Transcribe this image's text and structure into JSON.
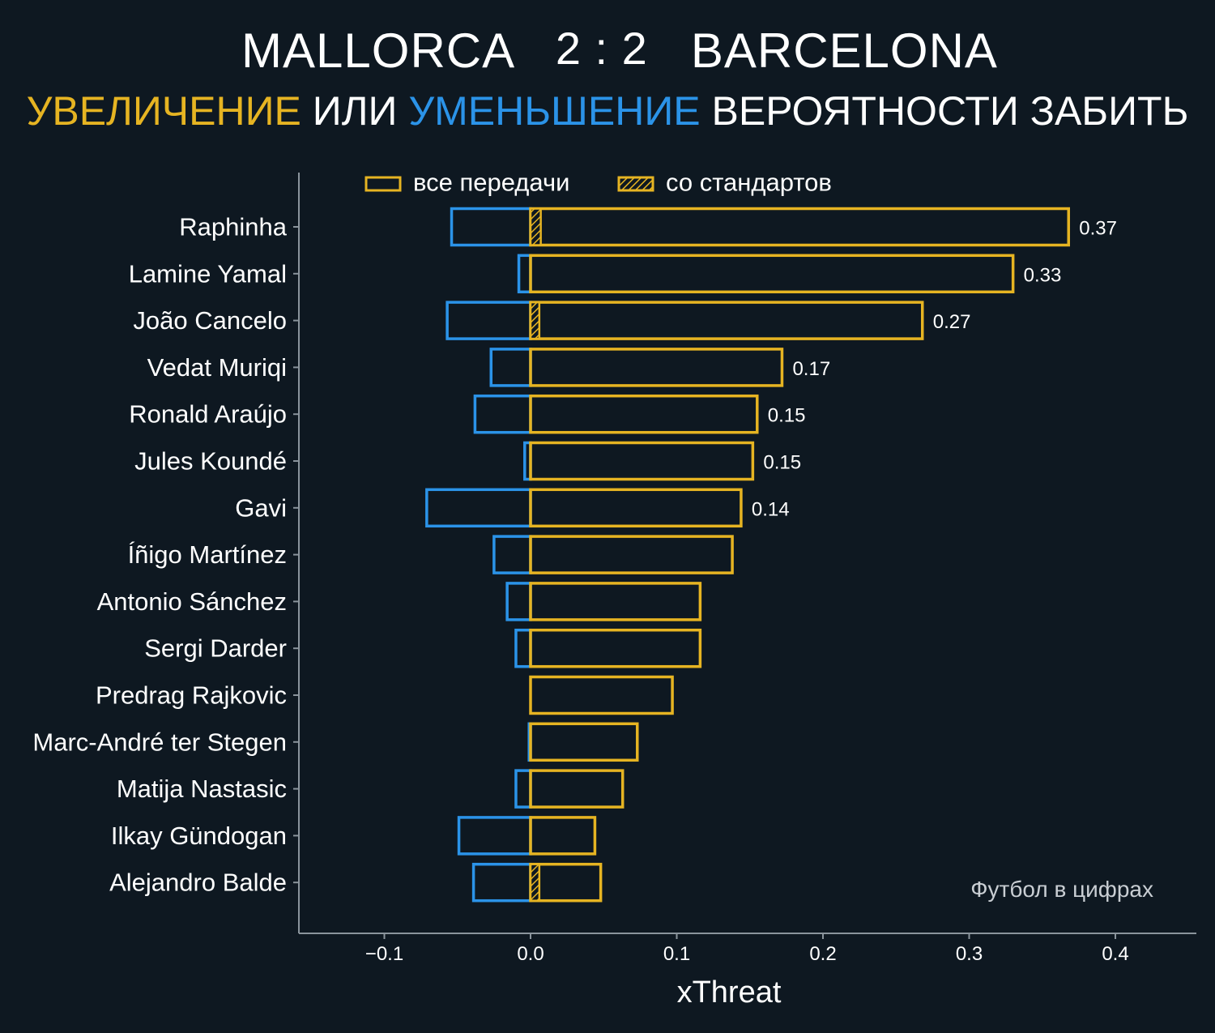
{
  "header": {
    "home_team": "MALLORCA",
    "score": "2 : 2",
    "away_team": "BARCELONA",
    "subtitle_increase": "УВЕЛИЧЕНИЕ",
    "subtitle_or": "ИЛИ",
    "subtitle_decrease": "УМЕНЬШЕНИЕ",
    "subtitle_rest": "ВЕРОЯТНОСТИ ЗАБИТЬ"
  },
  "credit": "Футбол в цифрах",
  "colors": {
    "background": "#0e1821",
    "increase": "#e6b422",
    "decrease": "#2b93e8",
    "axis": "#8a949c"
  },
  "chart_data": {
    "type": "bar",
    "orientation": "horizontal",
    "xlabel": "xThreat",
    "xlim": [
      -0.16,
      0.455
    ],
    "xticks": [
      -0.1,
      0.0,
      0.1,
      0.2,
      0.3,
      0.4
    ],
    "xtick_labels": [
      "−0.1",
      "0.0",
      "0.1",
      "0.2",
      "0.3",
      "0.4"
    ],
    "grid": false,
    "legend": {
      "placement": "top",
      "entries": [
        {
          "label": "все передачи",
          "style": "outline"
        },
        {
          "label": "со стандартов",
          "style": "hatched"
        }
      ]
    },
    "categories": [
      "Raphinha",
      "Lamine Yamal",
      "João Cancelo",
      "Vedat Muriqi",
      "Ronald Araújo",
      "Jules Koundé",
      "Gavi",
      "Íñigo Martínez",
      "Antonio Sánchez",
      "Sergi Darder",
      "Predrag Rajkovic",
      "Marc-André ter Stegen",
      "Matija Nastasic",
      "Ilkay Gündogan",
      "Alejandro Balde"
    ],
    "series": [
      {
        "name": "все передачи",
        "kind": "increase",
        "values": [
          0.368,
          0.33,
          0.268,
          0.172,
          0.155,
          0.152,
          0.144,
          0.138,
          0.116,
          0.116,
          0.097,
          0.073,
          0.063,
          0.044,
          0.048
        ]
      },
      {
        "name": "все передачи",
        "kind": "decrease",
        "values": [
          -0.054,
          -0.008,
          -0.057,
          -0.027,
          -0.038,
          -0.004,
          -0.071,
          -0.025,
          -0.016,
          -0.01,
          0.0,
          -0.001,
          -0.01,
          -0.049,
          -0.039
        ]
      },
      {
        "name": "со стандартов",
        "kind": "increase",
        "values": [
          0.007,
          0.0,
          0.006,
          0.0,
          0.0,
          0.0,
          0.0,
          0.0,
          0.0,
          0.0,
          0.0,
          0.0,
          0.0,
          0.0,
          0.006
        ]
      }
    ],
    "value_labels": [
      "0.37",
      "0.33",
      "0.27",
      "0.17",
      "0.15",
      "0.15",
      "0.14",
      "",
      "",
      "",
      "",
      "",
      "",
      "",
      ""
    ]
  }
}
